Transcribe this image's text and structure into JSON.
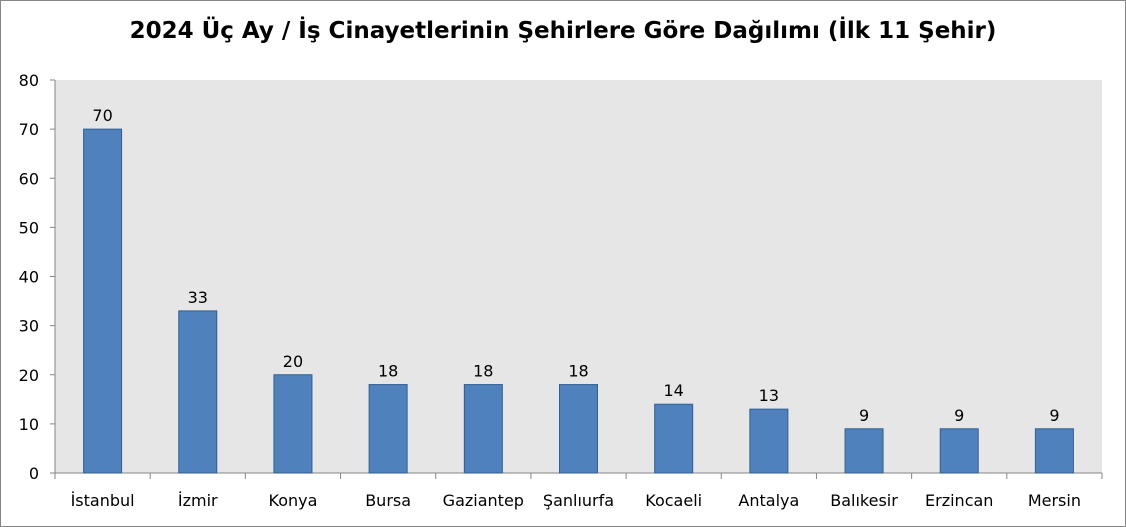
{
  "chart_data": {
    "type": "bar",
    "title": "2024 Üç Ay / İş Cinayetlerinin Şehirlere Göre Dağılımı (İlk 11 Şehir)",
    "xlabel": "",
    "ylabel": "",
    "categories": [
      "İstanbul",
      "İzmir",
      "Konya",
      "Bursa",
      "Gaziantep",
      "Şanlıurfa",
      "Kocaeli",
      "Antalya",
      "Balıkesir",
      "Erzincan",
      "Mersin"
    ],
    "values": [
      70,
      33,
      20,
      18,
      18,
      18,
      14,
      13,
      9,
      9,
      9
    ],
    "ylim": [
      0,
      80
    ],
    "yticks": [
      "0",
      "10",
      "20",
      "30",
      "40",
      "50",
      "60",
      "70",
      "80"
    ],
    "data_labels": true,
    "grid": false,
    "legend": "none",
    "colors": {
      "bar_fill": "#4f81bd",
      "bar_edge": "#2f5f93",
      "plot_background": "#e6e6e6",
      "axis": "#868686"
    }
  }
}
